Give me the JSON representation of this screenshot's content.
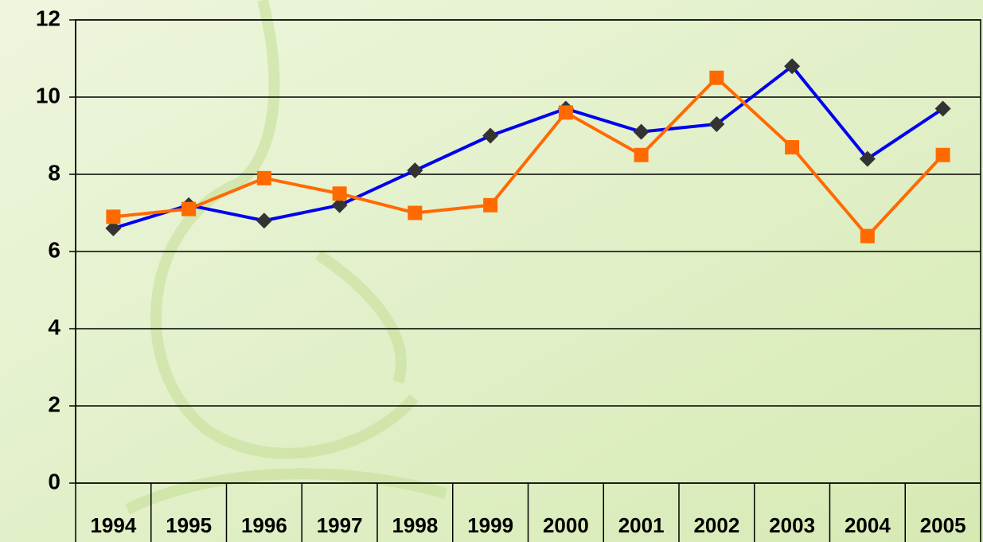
{
  "chart_data": {
    "type": "line",
    "categories": [
      "1994",
      "1995",
      "1996",
      "1997",
      "1998",
      "1999",
      "2000",
      "2001",
      "2002",
      "2003",
      "2004",
      "2005"
    ],
    "series": [
      {
        "color": "#0000ee",
        "marker": "diamond",
        "marker_color": "#333333",
        "values": [
          6.6,
          7.2,
          6.8,
          7.2,
          8.1,
          9.0,
          9.7,
          9.1,
          9.3,
          10.8,
          8.4,
          9.7
        ]
      },
      {
        "color": "#ff6a00",
        "marker": "square",
        "marker_color": "#ff6a00",
        "values": [
          6.9,
          7.1,
          7.9,
          7.5,
          7.0,
          7.2,
          9.6,
          8.5,
          10.5,
          8.7,
          6.4,
          8.5
        ]
      }
    ],
    "ylim": [
      0,
      12
    ],
    "yticks": [
      0,
      2,
      4,
      6,
      8,
      10,
      12
    ],
    "grid": true
  }
}
